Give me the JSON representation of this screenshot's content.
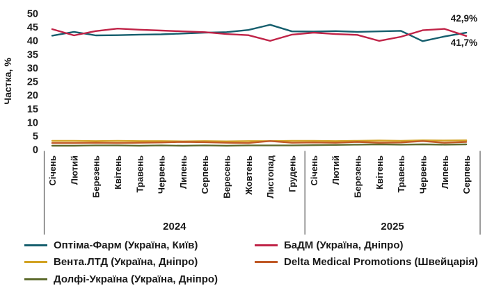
{
  "chart_data": {
    "type": "line",
    "title": "",
    "ylabel": "Частка, %",
    "ylim": [
      0,
      50
    ],
    "yticks": [
      0,
      5,
      10,
      15,
      20,
      25,
      30,
      35,
      40,
      45,
      50
    ],
    "grid": false,
    "legend_position": "bottom",
    "x_groups": [
      {
        "year": "2024",
        "months": [
          "Січень",
          "Лютий",
          "Березень",
          "Квітень",
          "Травень",
          "Червень",
          "Липень",
          "Серпень",
          "Вересень",
          "Жовтень",
          "Листопад",
          "Грудень"
        ]
      },
      {
        "year": "2025",
        "months": [
          "Січень",
          "Лютий",
          "Березень",
          "Квітень",
          "Травень",
          "Червень",
          "Липень",
          "Серпень"
        ]
      }
    ],
    "series": [
      {
        "key": "optima-farm",
        "name": "Оптіма-Фарм (Україна, Київ)",
        "color": "#155e6d",
        "values": [
          41.8,
          43.2,
          41.9,
          42.0,
          42.2,
          42.3,
          42.6,
          42.9,
          43.1,
          43.9,
          45.8,
          43.4,
          43.3,
          43.5,
          43.2,
          43.4,
          43.6,
          39.8,
          41.5,
          42.9
        ]
      },
      {
        "key": "badm",
        "name": "БаДМ (Україна, Дніпро)",
        "color": "#c02347",
        "values": [
          44.2,
          41.9,
          43.5,
          44.4,
          44.0,
          43.7,
          43.4,
          43.1,
          42.4,
          42.0,
          39.9,
          42.2,
          42.9,
          42.4,
          42.1,
          39.9,
          41.4,
          43.8,
          44.3,
          41.7
        ]
      },
      {
        "key": "venta-ltd",
        "name": "Вента.ЛТД (Україна, Дніпро)",
        "color": "#d2a324",
        "values": [
          3.2,
          3.2,
          3.1,
          3.2,
          3.1,
          3.1,
          3.0,
          3.1,
          3.0,
          3.1,
          3.1,
          3.2,
          3.2,
          3.1,
          3.2,
          3.3,
          3.2,
          3.4,
          3.3,
          3.4
        ]
      },
      {
        "key": "delta-medical",
        "name": "Delta Medical Promotions (Швейцарія)",
        "color": "#c05a27",
        "values": [
          2.4,
          2.4,
          2.5,
          2.4,
          2.5,
          2.6,
          2.8,
          2.7,
          2.5,
          2.4,
          3.1,
          2.5,
          2.6,
          2.5,
          2.8,
          2.5,
          2.6,
          3.1,
          2.5,
          2.8
        ]
      },
      {
        "key": "dolfi-ukraina",
        "name": "Долфі-Україна (Україна, Дніпро)",
        "color": "#5d6b2d",
        "values": [
          1.4,
          1.4,
          1.5,
          1.5,
          1.4,
          1.5,
          1.4,
          1.5,
          1.4,
          1.5,
          1.5,
          1.5,
          1.6,
          1.7,
          1.8,
          1.9,
          1.8,
          1.9,
          1.8,
          1.9
        ]
      }
    ],
    "legend_columns": [
      [
        0,
        2,
        4
      ],
      [
        1,
        3
      ]
    ],
    "end_labels": [
      "42,9%",
      "41,7%"
    ]
  }
}
